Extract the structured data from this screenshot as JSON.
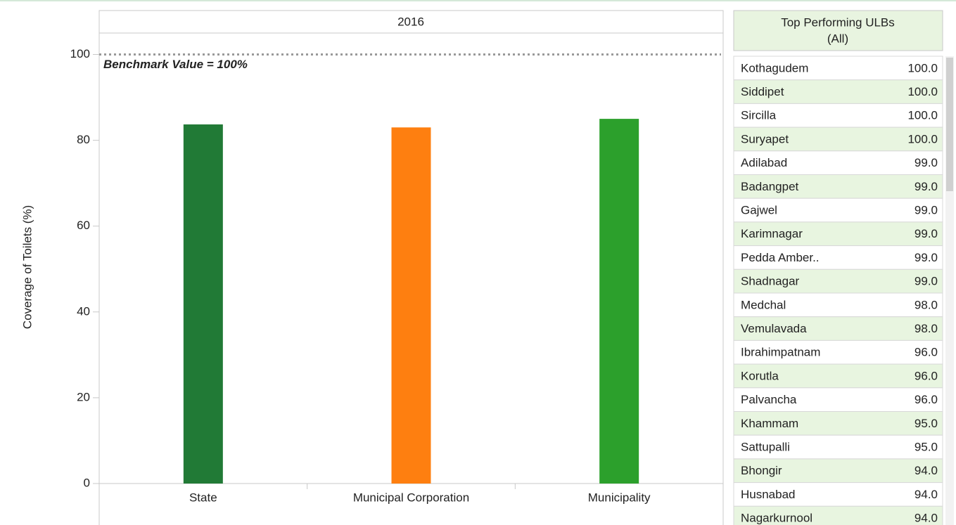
{
  "chart_data": {
    "type": "bar",
    "title": "2016",
    "y_label": "Coverage of Toilets (%)",
    "categories": [
      "State",
      "Municipal Corporation",
      "Municipality"
    ],
    "values": [
      83.7,
      83.0,
      85.0
    ],
    "colors": [
      "#217a36",
      "#fe7f10",
      "#2ca02c"
    ],
    "ylim": [
      0,
      105
    ],
    "yticks": [
      0,
      20,
      40,
      60,
      80,
      100
    ],
    "reference_line": {
      "value": 100,
      "label": "Benchmark Value = 100%"
    }
  },
  "table": {
    "title": [
      "Top Performing ULBs",
      "(All)"
    ],
    "rows": [
      [
        "Kothagudem",
        "100.0"
      ],
      [
        "Siddipet",
        "100.0"
      ],
      [
        "Sircilla",
        "100.0"
      ],
      [
        "Suryapet",
        "100.0"
      ],
      [
        "Adilabad",
        "99.0"
      ],
      [
        "Badangpet",
        "99.0"
      ],
      [
        "Gajwel",
        "99.0"
      ],
      [
        "Karimnagar",
        "99.0"
      ],
      [
        "Pedda Amber..",
        "99.0"
      ],
      [
        "Shadnagar",
        "99.0"
      ],
      [
        "Medchal",
        "98.0"
      ],
      [
        "Vemulavada",
        "98.0"
      ],
      [
        "Ibrahimpatnam",
        "96.0"
      ],
      [
        "Korutla",
        "96.0"
      ],
      [
        "Palvancha",
        "96.0"
      ],
      [
        "Khammam",
        "95.0"
      ],
      [
        "Sattupalli",
        "95.0"
      ],
      [
        "Bhongir",
        "94.0"
      ],
      [
        "Husnabad",
        "94.0"
      ],
      [
        "Nagarkurnool",
        "94.0"
      ]
    ]
  }
}
